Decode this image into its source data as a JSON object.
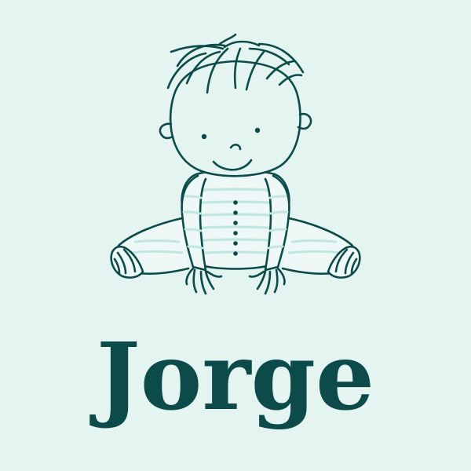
{
  "card": {
    "name": "Jorge"
  },
  "illustration": {
    "icon": "baby-sitting-illustration"
  },
  "colors": {
    "background": "#e3f4f1",
    "ink": "#0d4a4a",
    "stripe": "#bfe6df",
    "onesie": "#eef9f7"
  }
}
